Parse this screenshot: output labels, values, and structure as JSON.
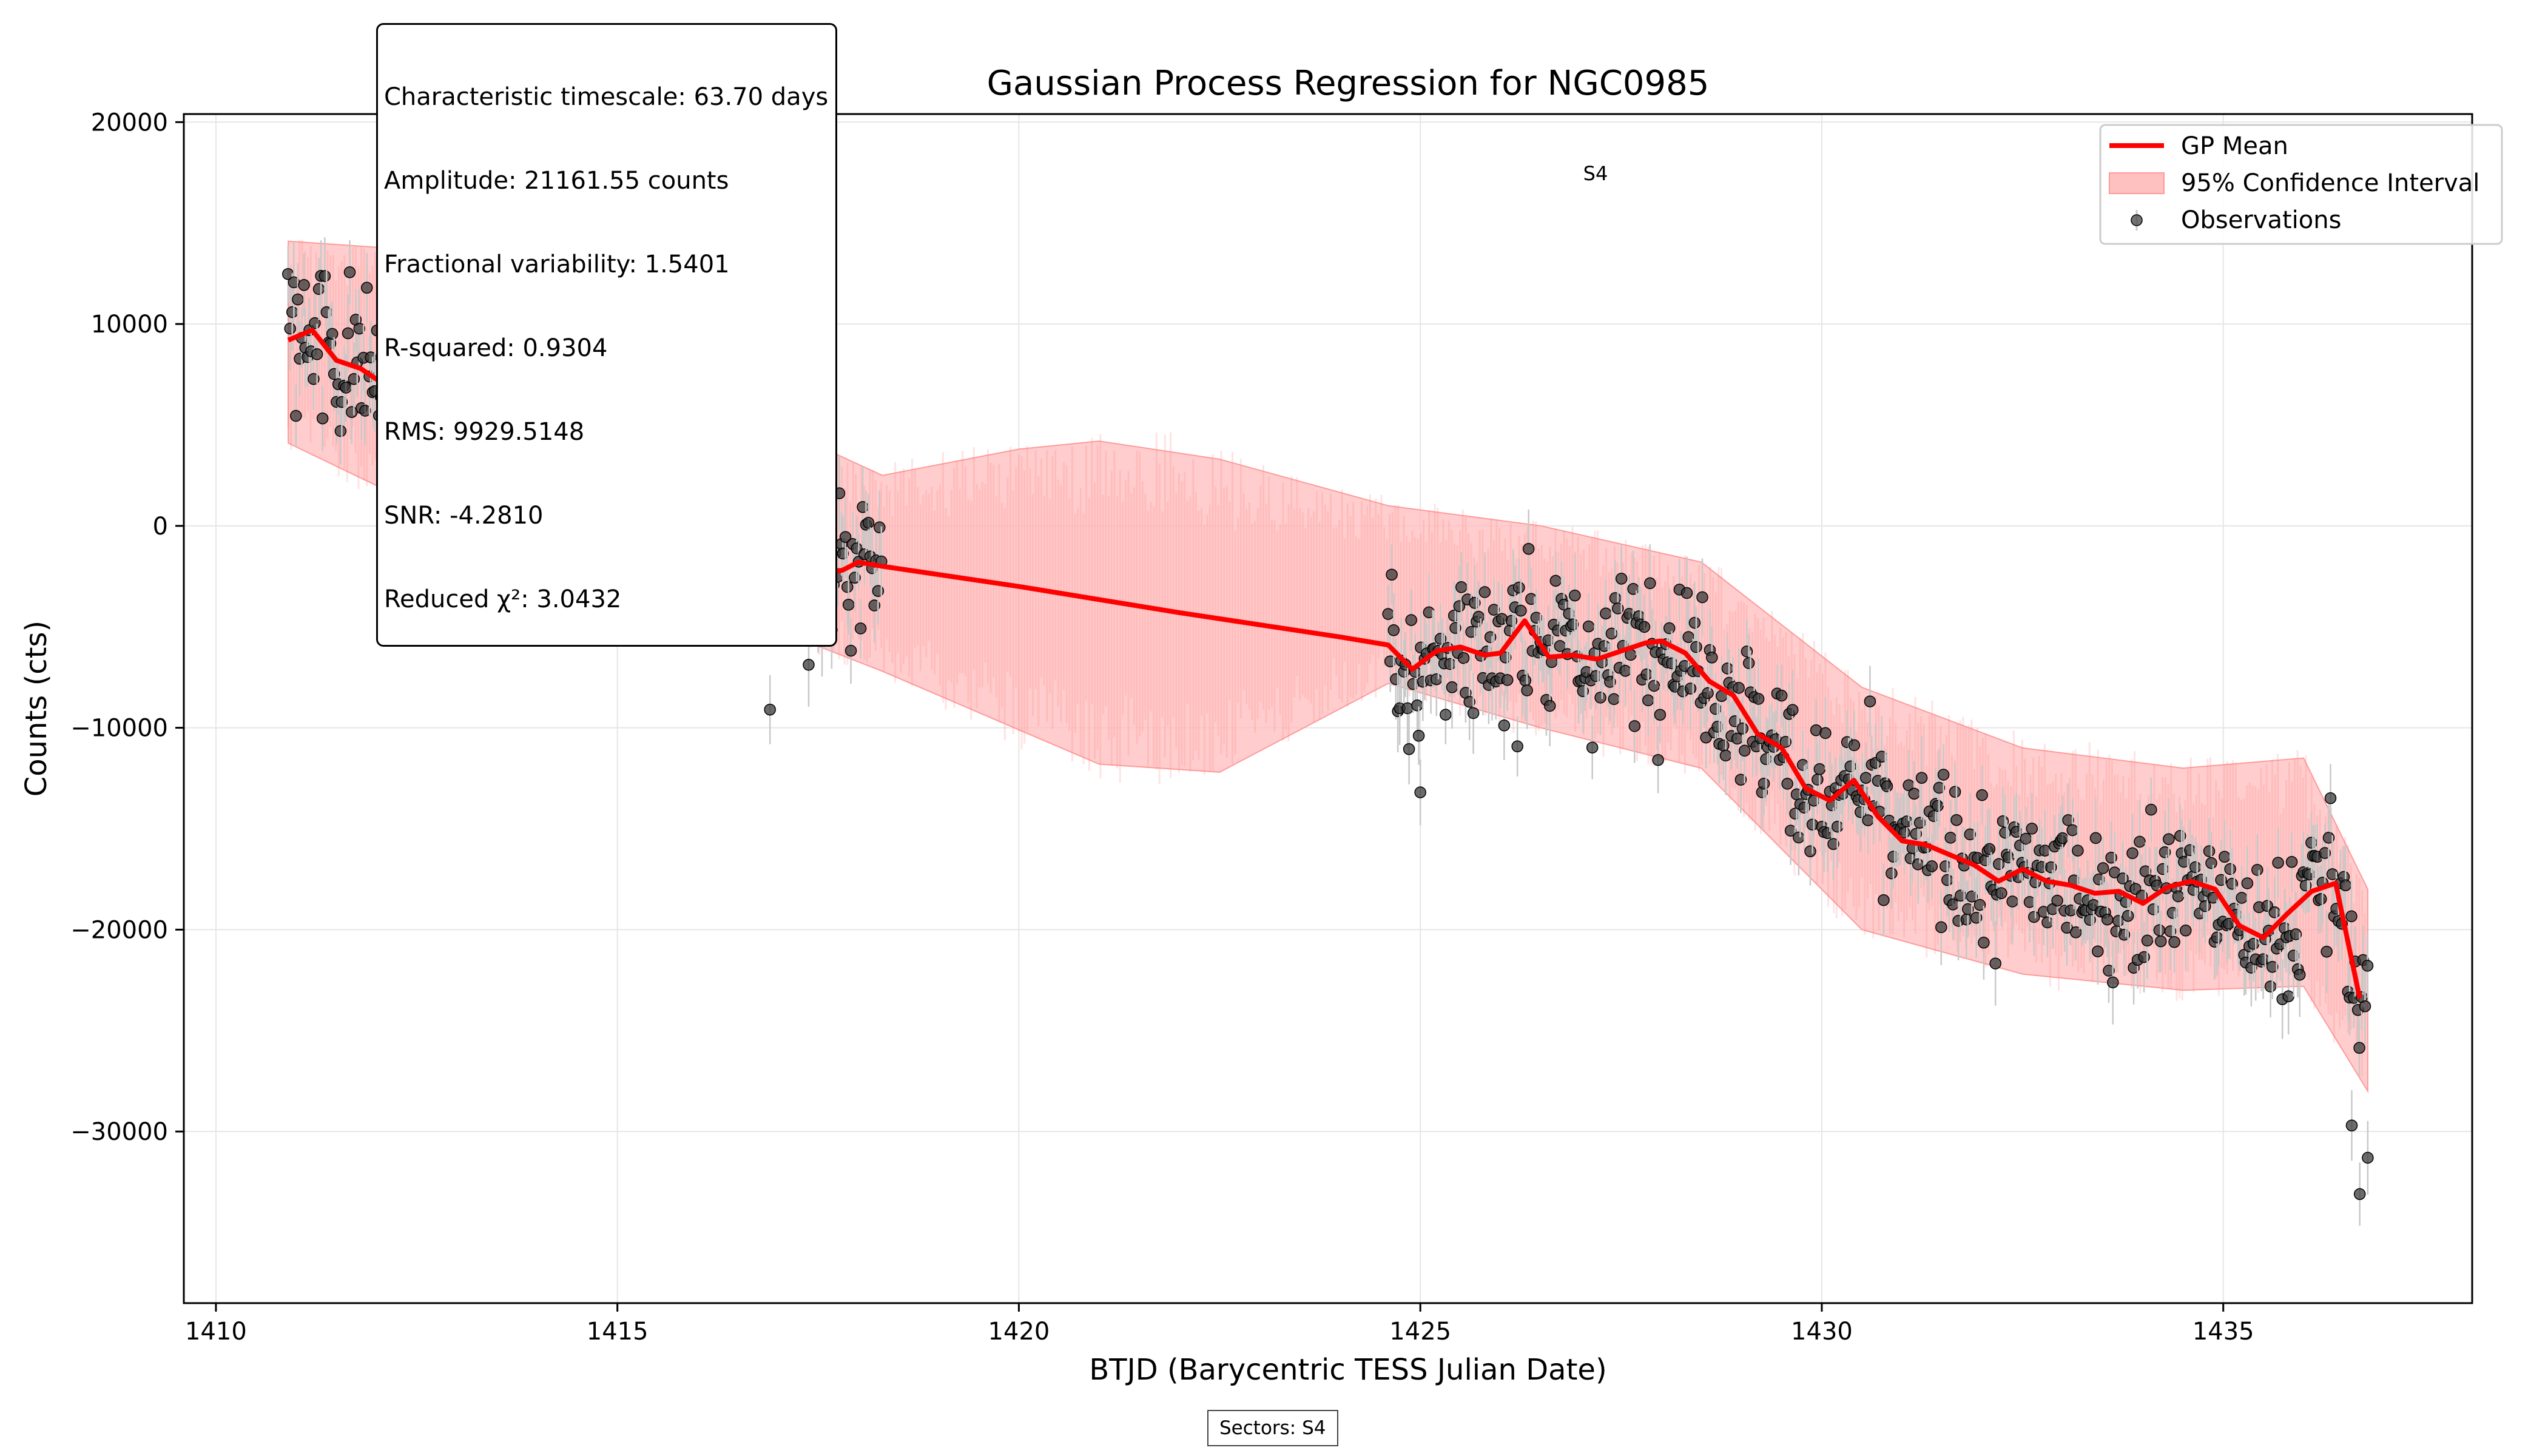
{
  "chart_data": {
    "type": "line",
    "title": "Gaussian Process Regression for NGC0985",
    "xlabel": "BTJD (Barycentric TESS Julian Date)",
    "ylabel": "Counts (cts)",
    "xlim": [
      1409.6,
      1438.1
    ],
    "ylim": [
      -38500,
      20400
    ],
    "x_ticks": [
      1410,
      1415,
      1420,
      1425,
      1430,
      1435
    ],
    "y_ticks": [
      20000,
      10000,
      0,
      -10000,
      -20000,
      -30000
    ],
    "y_tick_labels": [
      "20000",
      "10000",
      "0",
      "−10000",
      "−20000",
      "−30000"
    ],
    "grid": true,
    "legend_position": "top-right",
    "legend": [
      "GP Mean",
      "95% Confidence Interval",
      "Observations"
    ],
    "annotations": {
      "sector_label": "S4"
    },
    "series": [
      {
        "name": "GP Mean",
        "color": "#ff0000",
        "x": [
          1410.9,
          1411.2,
          1411.5,
          1411.8,
          1412.1,
          1412.4,
          1412.7,
          1413.0,
          1413.3,
          1413.5,
          1413.8,
          1414.1,
          1414.4,
          1414.7,
          1415.0,
          1415.3,
          1415.6,
          1415.9,
          1416.1,
          1416.4,
          1416.7,
          1417.0,
          1417.2,
          1417.5,
          1417.8,
          1418.0,
          1418.3,
          1420.0,
          1422.0,
          1424.0,
          1424.6,
          1424.9,
          1425.2,
          1425.5,
          1425.8,
          1426.0,
          1426.3,
          1426.6,
          1426.9,
          1427.2,
          1427.5,
          1427.8,
          1428.0,
          1428.3,
          1428.6,
          1428.9,
          1429.2,
          1429.5,
          1429.8,
          1430.1,
          1430.4,
          1430.7,
          1431.0,
          1431.3,
          1431.6,
          1431.9,
          1432.2,
          1432.5,
          1432.8,
          1433.1,
          1433.4,
          1433.7,
          1434.0,
          1434.3,
          1434.6,
          1434.9,
          1435.2,
          1435.5,
          1435.8,
          1436.1,
          1436.4,
          1436.7
        ],
        "values": [
          9200,
          9700,
          8200,
          7800,
          7000,
          8000,
          8200,
          7800,
          5900,
          5000,
          6200,
          5600,
          4500,
          3800,
          4800,
          4300,
          3300,
          1300,
          2000,
          2700,
          1000,
          800,
          -700,
          -2300,
          -2200,
          -1800,
          -2000,
          -3000,
          -4300,
          -5500,
          -5900,
          -7100,
          -6200,
          -6000,
          -6400,
          -6300,
          -4700,
          -6500,
          -6400,
          -6600,
          -6200,
          -5800,
          -5700,
          -6300,
          -7700,
          -8400,
          -10300,
          -11000,
          -13000,
          -13600,
          -12600,
          -14400,
          -15600,
          -15800,
          -16300,
          -16800,
          -17600,
          -17000,
          -17600,
          -17800,
          -18200,
          -18100,
          -18700,
          -17900,
          -17600,
          -18000,
          -19800,
          -20400,
          -19200,
          -18100,
          -17700,
          -23400
        ]
      },
      {
        "name": "95% Confidence Interval",
        "color": "#ff9090",
        "x": [
          1410.9,
          1412.0,
          1413.5,
          1415.0,
          1416.5,
          1418.3,
          1420.0,
          1421.0,
          1422.5,
          1424.6,
          1426.5,
          1428.5,
          1430.5,
          1432.5,
          1434.5,
          1436.0,
          1436.8
        ],
        "upper": [
          14100,
          13800,
          11500,
          9800,
          5800,
          2500,
          3800,
          4200,
          3300,
          1000,
          0,
          -1800,
          -8000,
          -11000,
          -12000,
          -11500,
          -18000
        ],
        "lower": [
          4100,
          2000,
          900,
          -800,
          -4400,
          -7200,
          -10100,
          -11800,
          -12200,
          -7800,
          -10000,
          -12000,
          -20000,
          -22200,
          -23000,
          -22800,
          -28000
        ]
      },
      {
        "name": "Observations",
        "color": "#222222",
        "type": "scatter",
        "x_range": [
          1410.9,
          1418.3,
          1424.6,
          1436.8
        ],
        "values_follow": "GP Mean with scatter",
        "extreme_points": [
          [
            1436.7,
            -33100
          ],
          [
            1436.8,
            -31300
          ],
          [
            1436.6,
            -29700
          ],
          [
            1416.9,
            -9100
          ],
          [
            1425.0,
            -13200
          ],
          [
            1412.7,
            14700
          ]
        ]
      }
    ]
  },
  "stats": {
    "lines": [
      "Characteristic timescale: 63.70 days",
      "Amplitude: 21161.55 counts",
      "Fractional variability: 1.5401",
      "R-squared: 0.9304",
      "RMS: 9929.5148",
      "SNR: -4.2810",
      "Reduced χ²: 3.0432"
    ]
  },
  "footer": {
    "sectors": "Sectors: S4"
  }
}
